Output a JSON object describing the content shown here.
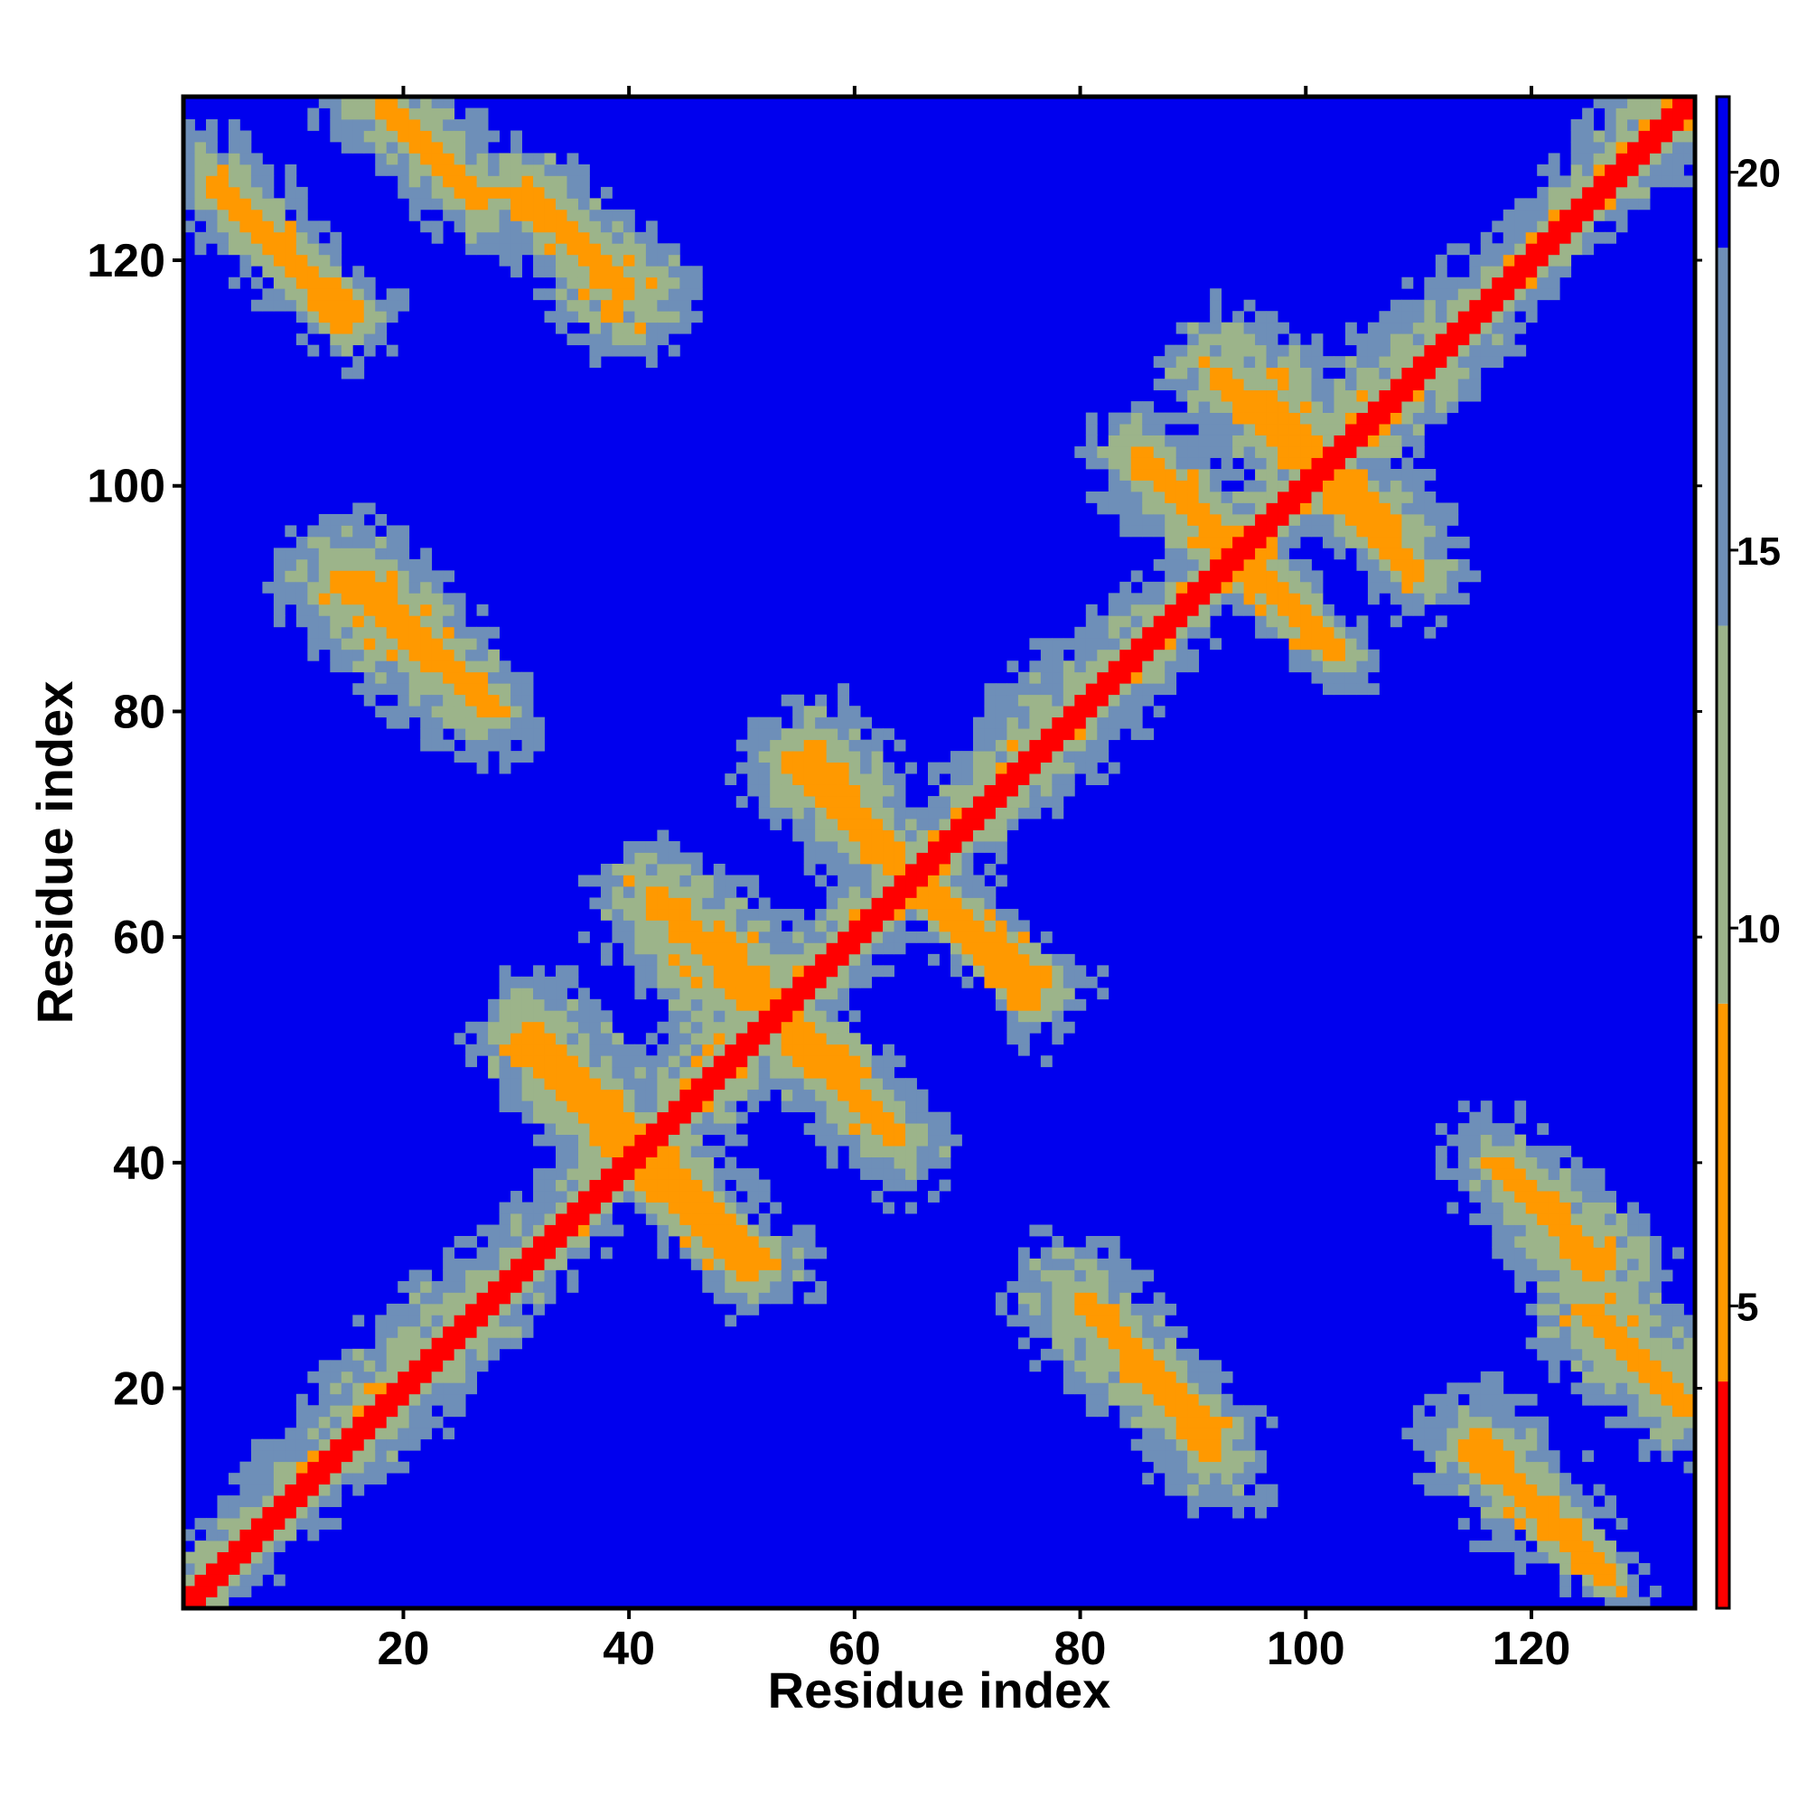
{
  "chart_data": {
    "type": "heatmap",
    "title": "",
    "xlabel": "Residue index",
    "ylabel": "Residue index",
    "n_residues": 134,
    "xlim": [
      1,
      134
    ],
    "ylim": [
      1,
      134
    ],
    "x_ticks": [
      20,
      40,
      60,
      80,
      100,
      120
    ],
    "y_ticks": [
      20,
      40,
      60,
      80,
      100,
      120
    ],
    "colorbar": {
      "range": [
        1,
        21
      ],
      "ticks": [
        5,
        10,
        15,
        20
      ],
      "levels": [
        {
          "upper": 4,
          "color": "#ff0000"
        },
        {
          "upper": 9,
          "color": "#ff9900"
        },
        {
          "upper": 14,
          "color": "#9cb48a"
        },
        {
          "upper": 19,
          "color": "#6e8fb8"
        },
        {
          "upper": 21,
          "color": "#0000ee"
        }
      ]
    },
    "description_of_values": "pairwise residue distance map; symmetric about diagonal",
    "contact_bands": [
      {
        "i": [
          2,
          134
        ],
        "j": [
          2,
          134
        ],
        "kind": "diagonal"
      },
      {
        "i": [
          40,
          51
        ],
        "j": [
          40,
          30
        ],
        "kind": "antiparallel"
      },
      {
        "i": [
          31,
          42
        ],
        "j": [
          52,
          41
        ],
        "kind": "antiparallel"
      },
      {
        "i": [
          42,
          60
        ],
        "j": [
          64,
          48
        ],
        "kind": "antiparallel"
      },
      {
        "i": [
          54,
          64
        ],
        "j": [
          51,
          42
        ],
        "kind": "antiparallel"
      },
      {
        "i": [
          54,
          66
        ],
        "j": [
          76,
          64
        ],
        "kind": "antiparallel"
      },
      {
        "i": [
          64,
          77
        ],
        "j": [
          66,
          56
        ],
        "kind": "antiparallel"
      },
      {
        "i": [
          86,
          96
        ],
        "j": [
          102,
          93
        ],
        "kind": "antiparallel"
      },
      {
        "i": [
          93,
          103
        ],
        "j": [
          94,
          85
        ],
        "kind": "antiparallel"
      },
      {
        "i": [
          96,
          106
        ],
        "j": [
          108,
          98
        ],
        "kind": "antiparallel"
      },
      {
        "i": [
          100,
          110
        ],
        "j": [
          102,
          92
        ],
        "kind": "antiparallel"
      },
      {
        "i": [
          14,
          28
        ],
        "j": [
          92,
          80
        ],
        "kind": "antiparallel"
      },
      {
        "i": [
          81,
          92
        ],
        "j": [
          27,
          16
        ],
        "kind": "antiparallel"
      },
      {
        "i": [
          3,
          15
        ],
        "j": [
          127,
          114
        ],
        "kind": "antiparallel"
      },
      {
        "i": [
          115,
          127
        ],
        "j": [
          16,
          3
        ],
        "kind": "antiparallel"
      },
      {
        "i": [
          18,
          26
        ],
        "j": [
          134,
          126
        ],
        "kind": "antiparallel"
      },
      {
        "i": [
          31,
          39
        ],
        "j": [
          126,
          118
        ],
        "kind": "antiparallel"
      },
      {
        "i": [
          117,
          126
        ],
        "j": [
          40,
          30
        ],
        "kind": "antiparallel"
      },
      {
        "i": [
          125,
          134
        ],
        "j": [
          27,
          18
        ],
        "kind": "antiparallel"
      }
    ]
  }
}
